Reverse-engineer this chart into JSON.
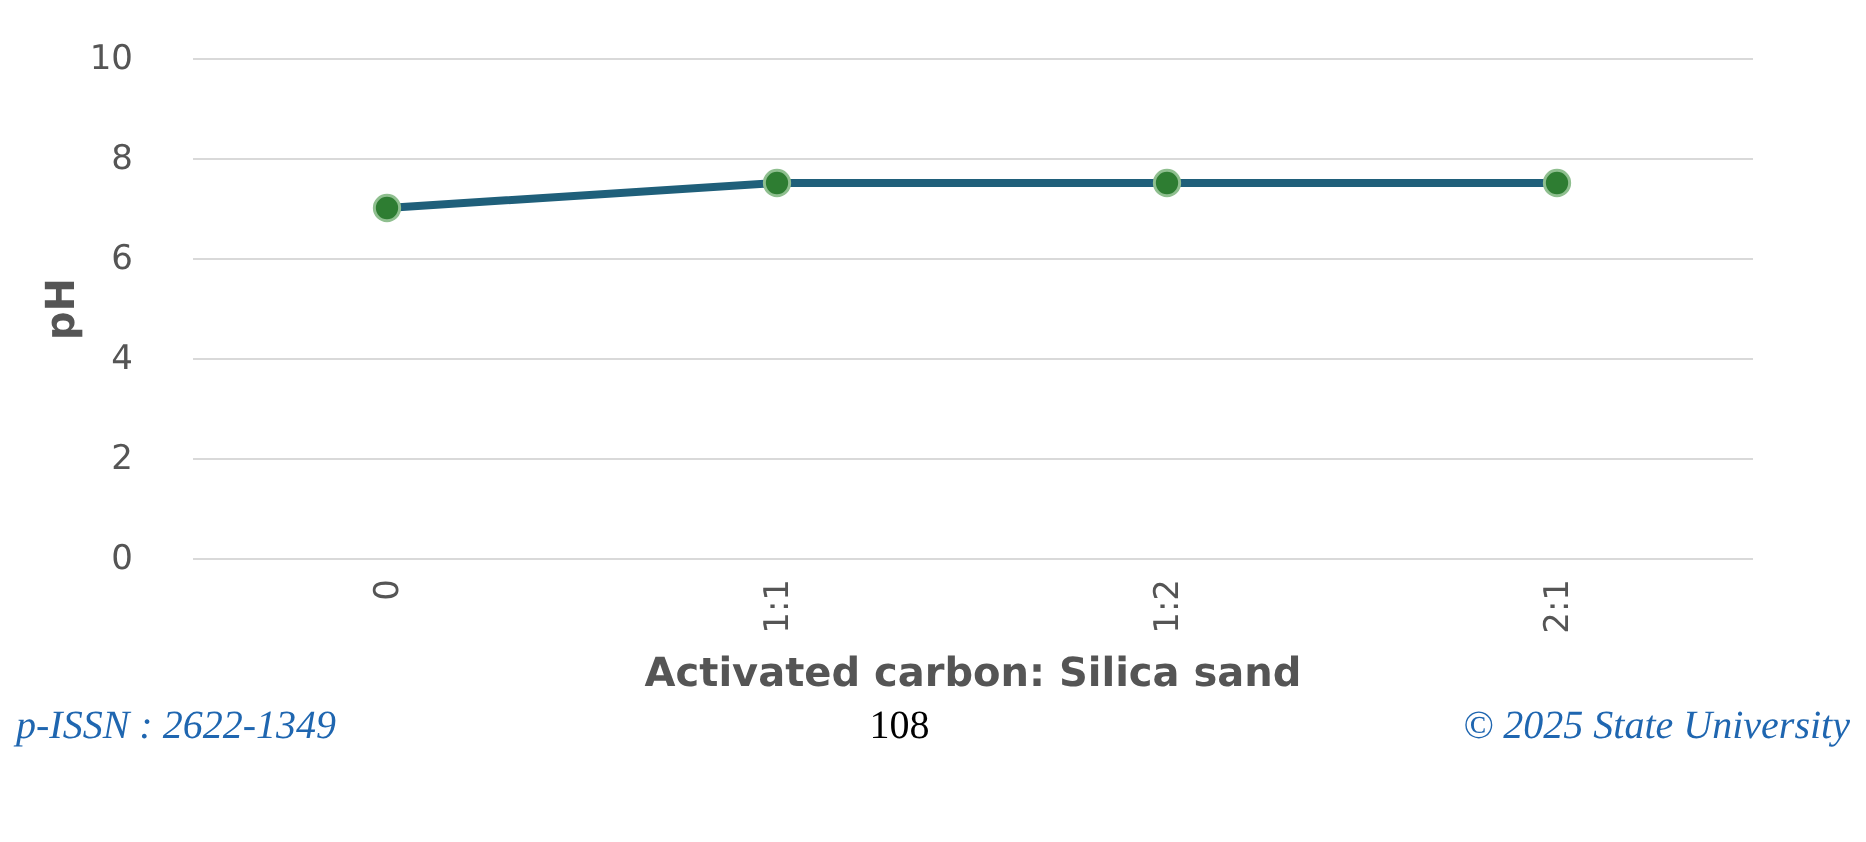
{
  "chart_data": {
    "type": "line",
    "xlabel": "Activated carbon: Silica sand",
    "ylabel": "pH",
    "categories": [
      "0",
      "1:1",
      "1:2",
      "2:1"
    ],
    "series": [
      {
        "color": "#1f5f7a",
        "values": [
          7.0,
          7.5,
          7.5,
          7.5
        ]
      }
    ],
    "marker": "circle",
    "ylim": [
      0,
      10
    ],
    "yticks": [
      0,
      2,
      4,
      6,
      8,
      10
    ],
    "grid": "y",
    "annotations": [
      "p-ISSN : 2622-1349",
      "108",
      "© 2025 State University"
    ]
  }
}
